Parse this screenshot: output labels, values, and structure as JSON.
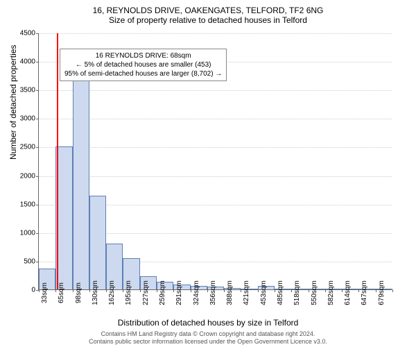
{
  "title_line1": "16, REYNOLDS DRIVE, OAKENGATES, TELFORD, TF2 6NG",
  "title_line2": "Size of property relative to detached houses in Telford",
  "chart": {
    "type": "histogram",
    "ylabel": "Number of detached properties",
    "xlabel": "Distribution of detached houses by size in Telford",
    "ylim": [
      0,
      4500
    ],
    "ytick_step": 500,
    "yticks": [
      0,
      500,
      1000,
      1500,
      2000,
      2500,
      3000,
      3500,
      4000,
      4500
    ],
    "xticks": [
      "33sqm",
      "65sqm",
      "98sqm",
      "130sqm",
      "162sqm",
      "195sqm",
      "227sqm",
      "259sqm",
      "291sqm",
      "324sqm",
      "356sqm",
      "388sqm",
      "421sqm",
      "453sqm",
      "485sqm",
      "518sqm",
      "550sqm",
      "582sqm",
      "614sqm",
      "647sqm",
      "679sqm"
    ],
    "values": [
      370,
      2500,
      3750,
      1640,
      800,
      550,
      230,
      140,
      90,
      60,
      45,
      25,
      15,
      55,
      10,
      5,
      0,
      3,
      0,
      0,
      0
    ],
    "bar_fill": "#cdd9ef",
    "bar_stroke": "#5b7fb5",
    "background_color": "#ffffff",
    "grid_color": "#cccccc",
    "marker_value_sqm": 68,
    "marker_color": "#ff0000",
    "label_fontsize": 12,
    "tick_fontsize": 10
  },
  "annotation": {
    "line1": "16 REYNOLDS DRIVE: 68sqm",
    "line2": "← 5% of detached houses are smaller (453)",
    "line3": "95% of semi-detached houses are larger (8,702) →"
  },
  "footer_line1": "Contains HM Land Registry data © Crown copyright and database right 2024.",
  "footer_line2": "Contains public sector information licensed under the Open Government Licence v3.0."
}
